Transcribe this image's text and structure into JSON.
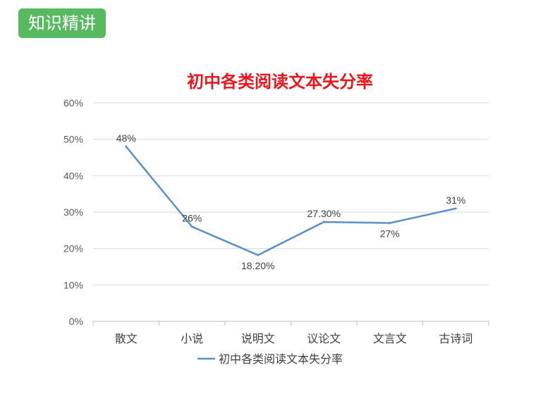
{
  "header": {
    "badge_label": "知识精讲"
  },
  "colors": {
    "badge": "#58b961",
    "title": "#e8171d",
    "line": "#5b8fc7",
    "grid": "#d9d9d9"
  },
  "chart_data": {
    "type": "line",
    "title": "初中各类阅读文本失分率",
    "categories": [
      "散文",
      "小说",
      "说明文",
      "议论文",
      "文言文",
      "古诗词"
    ],
    "series": [
      {
        "name": "初中各类阅读文本失分率",
        "values": [
          48,
          26,
          18.2,
          27.3,
          27,
          31
        ]
      }
    ],
    "data_labels": [
      "48%",
      "26%",
      "18.20%",
      "27.30%",
      "27%",
      "31%"
    ],
    "y_ticks": [
      "0%",
      "10%",
      "20%",
      "30%",
      "40%",
      "50%",
      "60%"
    ],
    "ylim": [
      0,
      60
    ],
    "grid": true,
    "legend": "bottom"
  }
}
